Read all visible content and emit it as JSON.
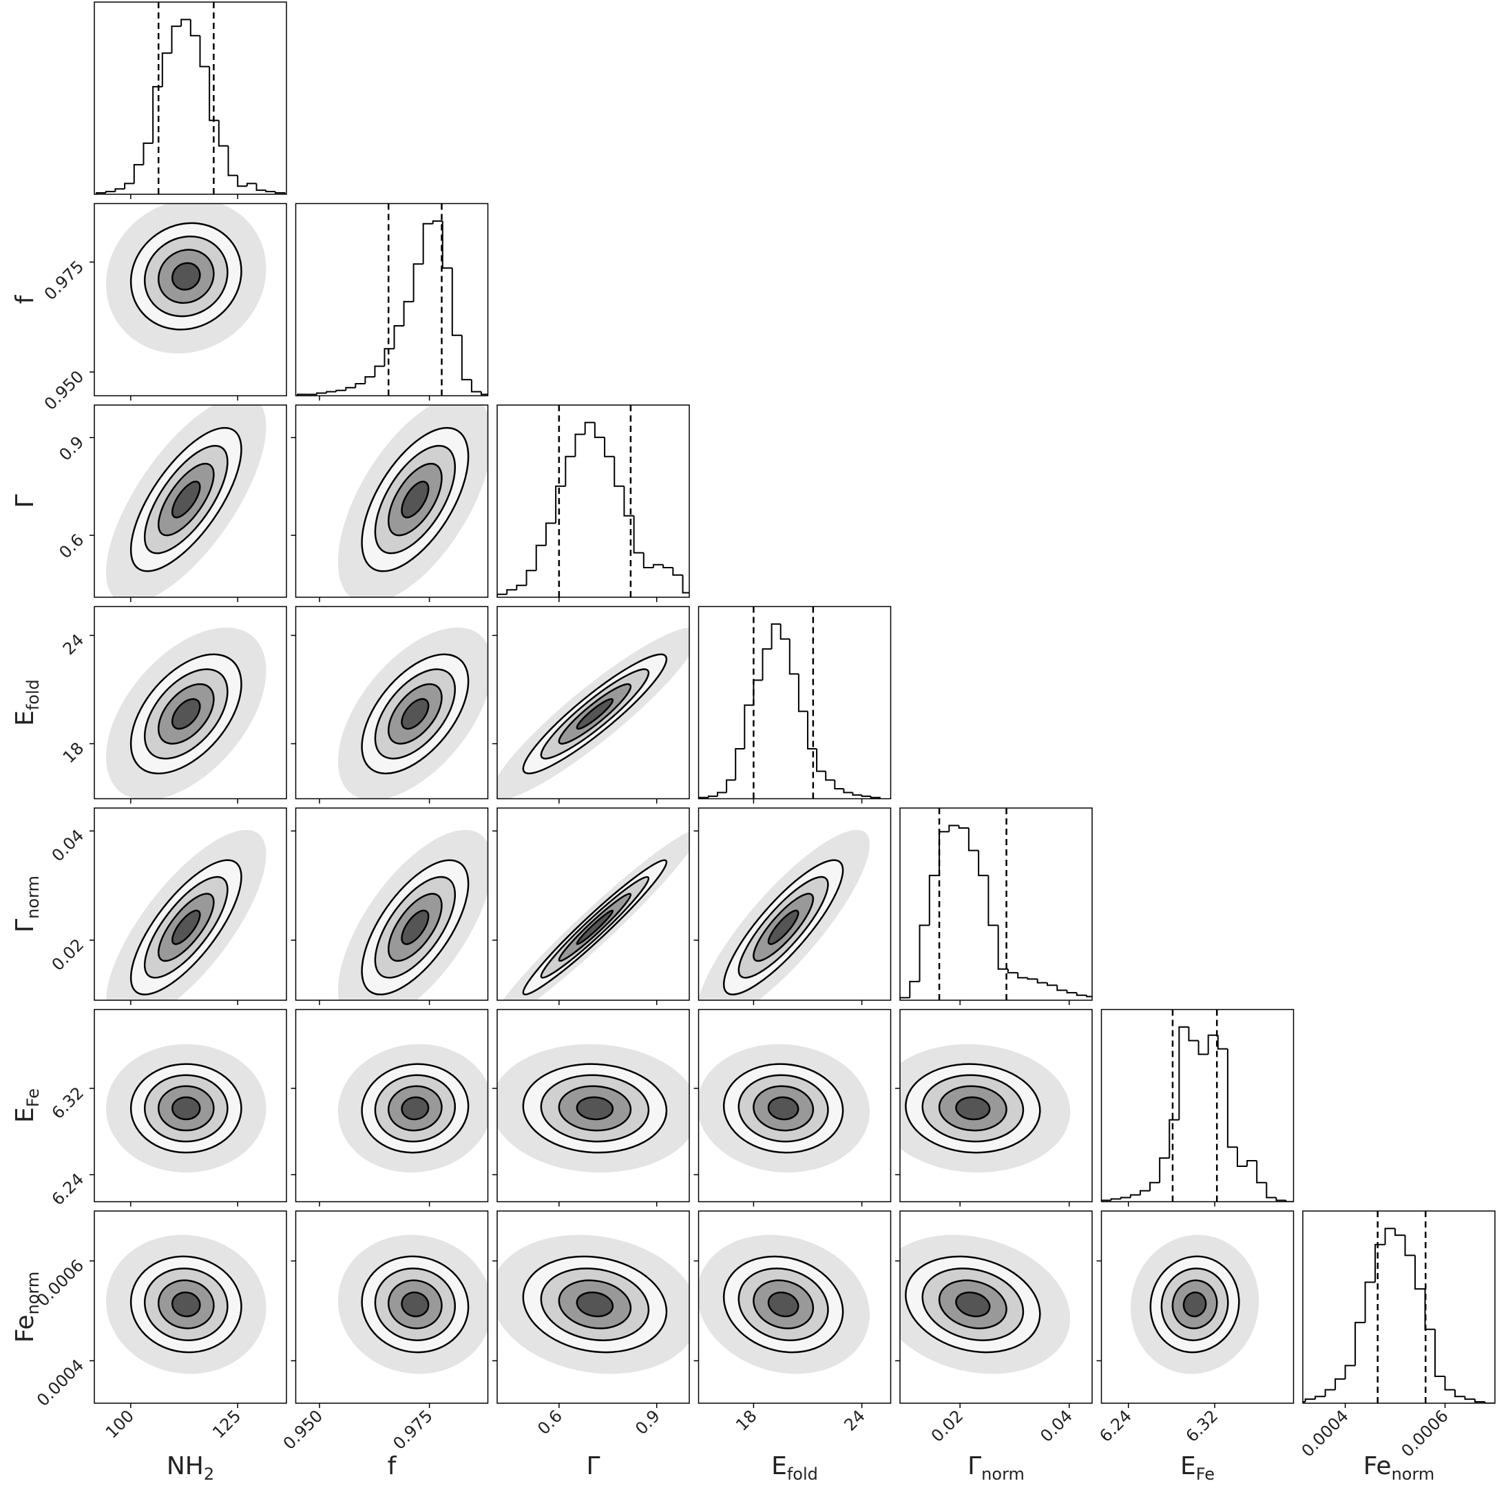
{
  "chart_data": {
    "type": "corner",
    "parameters": [
      {
        "label": {
          "text": "NH",
          "sub": "2"
        },
        "lim": [
          91.5,
          136.4
        ],
        "ticks": [
          100,
          125
        ],
        "quantiles": [
          106.5,
          119.4
        ],
        "bins": [
          92,
          94.2,
          96.4,
          98.6,
          100.8,
          103,
          105.2,
          107.4,
          109.6,
          111.8,
          114,
          116.2,
          118.4,
          120.6,
          122.8,
          125,
          127.2,
          129.4,
          131.6,
          133.8,
          136
        ],
        "counts": [
          1,
          2,
          4,
          8,
          22,
          38,
          80,
          105,
          125,
          130,
          118,
          95,
          55,
          36,
          14,
          6,
          8,
          3,
          2,
          1
        ]
      },
      {
        "label": {
          "text": "f"
        },
        "lim": [
          0.9446,
          0.9883
        ],
        "ticks": [
          {
            "value": 0.95,
            "label": "0.950"
          },
          0.975
        ],
        "quantiles": [
          0.9657,
          0.9778
        ],
        "bins": [
          0.945,
          0.9472,
          0.9494,
          0.9516,
          0.9538,
          0.956,
          0.9582,
          0.9604,
          0.9626,
          0.9648,
          0.967,
          0.9692,
          0.9714,
          0.9736,
          0.9758,
          0.978,
          0.9802,
          0.9824,
          0.9846,
          0.9868,
          0.989
        ],
        "counts": [
          1,
          1,
          2,
          3,
          4,
          6,
          9,
          14,
          22,
          35,
          52,
          70,
          98,
          128,
          130,
          95,
          45,
          12,
          3,
          1
        ]
      },
      {
        "label": {
          "text": "Γ"
        },
        "lim": [
          0.41,
          1.0
        ],
        "ticks": [
          0.6,
          0.9
        ],
        "quantiles": [
          0.6,
          0.82
        ],
        "bins": [
          0.41,
          0.44,
          0.47,
          0.5,
          0.53,
          0.56,
          0.59,
          0.62,
          0.65,
          0.68,
          0.71,
          0.74,
          0.77,
          0.8,
          0.83,
          0.86,
          0.89,
          0.92,
          0.95,
          0.98,
          1.01
        ],
        "counts": [
          2,
          5,
          8,
          18,
          35,
          50,
          75,
          95,
          110,
          118,
          108,
          95,
          75,
          55,
          30,
          20,
          22,
          20,
          15,
          3
        ]
      },
      {
        "label": {
          "text": "E",
          "sub": "fold"
        },
        "lim": [
          14.95,
          25.6
        ],
        "ticks": [
          18,
          24
        ],
        "quantiles": [
          18.0,
          21.3
        ],
        "bins": [
          15,
          15.5,
          16,
          16.5,
          17,
          17.5,
          18,
          18.5,
          19,
          19.5,
          20,
          20.5,
          21,
          21.5,
          22,
          22.5,
          23,
          23.5,
          24,
          24.5,
          25
        ],
        "counts": [
          1,
          2,
          5,
          15,
          40,
          75,
          95,
          120,
          140,
          128,
          100,
          70,
          40,
          22,
          15,
          8,
          5,
          3,
          2,
          1
        ]
      },
      {
        "label": {
          "text": "Γ",
          "sub": "norm"
        },
        "lim": [
          0.009,
          0.0442
        ],
        "ticks": [
          0.02,
          0.04
        ],
        "quantiles": [
          0.0162,
          0.0285
        ],
        "bins": [
          0.009,
          0.0108,
          0.0126,
          0.0144,
          0.0162,
          0.018,
          0.0198,
          0.0216,
          0.0234,
          0.0252,
          0.027,
          0.0288,
          0.0306,
          0.0324,
          0.0342,
          0.036,
          0.0378,
          0.0396,
          0.0414,
          0.0432,
          0.045
        ],
        "counts": [
          2,
          15,
          60,
          100,
          135,
          140,
          138,
          120,
          100,
          60,
          25,
          22,
          18,
          17,
          14,
          12,
          8,
          6,
          4,
          3
        ]
      },
      {
        "label": {
          "text": "E",
          "sub": "Fe"
        },
        "lim": [
          6.215,
          6.393
        ],
        "ticks": [
          6.24,
          6.32
        ],
        "quantiles": [
          6.281,
          6.322
        ],
        "bins": [
          6.215,
          6.224,
          6.233,
          6.242,
          6.251,
          6.26,
          6.269,
          6.278,
          6.287,
          6.296,
          6.305,
          6.314,
          6.323,
          6.332,
          6.341,
          6.35,
          6.359,
          6.368,
          6.377,
          6.386,
          6.395
        ],
        "counts": [
          1,
          2,
          3,
          5,
          8,
          14,
          32,
          60,
          128,
          118,
          108,
          122,
          112,
          40,
          26,
          30,
          14,
          3,
          1,
          0
        ]
      },
      {
        "label": {
          "text": "Fe",
          "sub": "norm"
        },
        "lim": [
          0.000315,
          0.0007
        ],
        "ticks": [
          0.0004,
          0.0006
        ],
        "quantiles": [
          0.000465,
          0.000561
        ],
        "bins": [
          0.0003,
          0.00032,
          0.00034,
          0.00036,
          0.00038,
          0.0004,
          0.00042,
          0.00044,
          0.00046,
          0.00048,
          0.0005,
          0.00052,
          0.00054,
          0.00056,
          0.00058,
          0.0006,
          0.00062,
          0.00064,
          0.00066,
          0.00068,
          0.0007
        ],
        "counts": [
          1,
          3,
          5,
          10,
          18,
          28,
          60,
          90,
          118,
          130,
          125,
          110,
          85,
          55,
          20,
          10,
          5,
          3,
          1,
          0
        ]
      }
    ],
    "correlations": [
      [
        0.1
      ],
      [
        0.7,
        0.6
      ],
      [
        0.5,
        0.55,
        0.92
      ],
      [
        0.75,
        0.65,
        0.97,
        0.85
      ],
      [
        0.0,
        0.05,
        -0.05,
        -0.05,
        -0.05
      ],
      [
        -0.05,
        -0.05,
        -0.15,
        -0.15,
        -0.2,
        0.05
      ]
    ],
    "color": "#000000"
  }
}
